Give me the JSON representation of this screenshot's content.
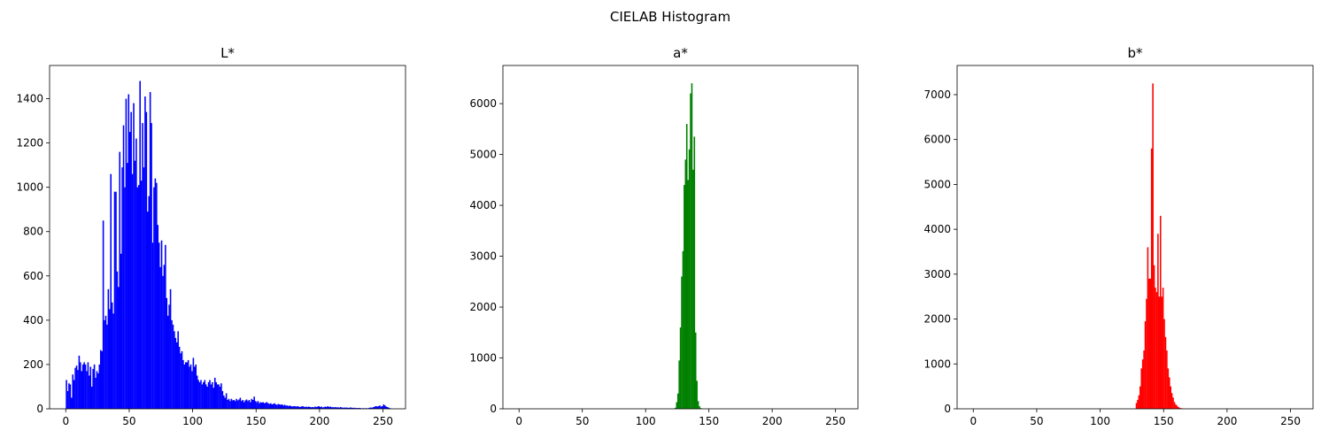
{
  "figure": {
    "suptitle": "CIELAB Histogram"
  },
  "chart_data": [
    {
      "type": "bar",
      "title": "L*",
      "color": "#0000ff",
      "xlim": [
        -12.75,
        267.75
      ],
      "ylim": [
        0,
        1550
      ],
      "xticks": [
        0,
        50,
        100,
        150,
        200,
        250
      ],
      "yticks": [
        0,
        200,
        400,
        600,
        800,
        1000,
        1200,
        1400
      ],
      "bins": [
        [
          0,
          130
        ],
        [
          1,
          80
        ],
        [
          2,
          115
        ],
        [
          3,
          110
        ],
        [
          4,
          50
        ],
        [
          5,
          155
        ],
        [
          6,
          130
        ],
        [
          7,
          185
        ],
        [
          8,
          195
        ],
        [
          9,
          175
        ],
        [
          10,
          240
        ],
        [
          11,
          210
        ],
        [
          12,
          170
        ],
        [
          13,
          200
        ],
        [
          14,
          210
        ],
        [
          15,
          200
        ],
        [
          16,
          170
        ],
        [
          17,
          210
        ],
        [
          18,
          150
        ],
        [
          19,
          190
        ],
        [
          20,
          100
        ],
        [
          21,
          180
        ],
        [
          22,
          200
        ],
        [
          23,
          140
        ],
        [
          24,
          170
        ],
        [
          25,
          160
        ],
        [
          26,
          200
        ],
        [
          27,
          265
        ],
        [
          28,
          260
        ],
        [
          29,
          850
        ],
        [
          30,
          400
        ],
        [
          31,
          420
        ],
        [
          32,
          380
        ],
        [
          33,
          540
        ],
        [
          34,
          450
        ],
        [
          35,
          1060
        ],
        [
          36,
          480
        ],
        [
          37,
          430
        ],
        [
          38,
          980
        ],
        [
          39,
          980
        ],
        [
          40,
          620
        ],
        [
          41,
          550
        ],
        [
          42,
          1160
        ],
        [
          43,
          700
        ],
        [
          44,
          1090
        ],
        [
          45,
          1280
        ],
        [
          46,
          1000
        ],
        [
          47,
          1400
        ],
        [
          48,
          1110
        ],
        [
          49,
          1420
        ],
        [
          50,
          1250
        ],
        [
          51,
          1340
        ],
        [
          52,
          1060
        ],
        [
          53,
          1380
        ],
        [
          54,
          1120
        ],
        [
          55,
          1220
        ],
        [
          56,
          1000
        ],
        [
          57,
          1010
        ],
        [
          58,
          1480
        ],
        [
          59,
          1030
        ],
        [
          60,
          1290
        ],
        [
          61,
          1090
        ],
        [
          62,
          1410
        ],
        [
          63,
          1340
        ],
        [
          64,
          890
        ],
        [
          65,
          960
        ],
        [
          66,
          1430
        ],
        [
          67,
          1290
        ],
        [
          68,
          750
        ],
        [
          69,
          1000
        ],
        [
          70,
          1040
        ],
        [
          71,
          1020
        ],
        [
          72,
          830
        ],
        [
          73,
          750
        ],
        [
          74,
          640
        ],
        [
          75,
          760
        ],
        [
          76,
          600
        ],
        [
          77,
          650
        ],
        [
          78,
          740
        ],
        [
          79,
          500
        ],
        [
          80,
          420
        ],
        [
          81,
          470
        ],
        [
          82,
          540
        ],
        [
          83,
          400
        ],
        [
          84,
          380
        ],
        [
          85,
          350
        ],
        [
          86,
          320
        ],
        [
          87,
          300
        ],
        [
          88,
          350
        ],
        [
          89,
          280
        ],
        [
          90,
          250
        ],
        [
          91,
          260
        ],
        [
          92,
          220
        ],
        [
          93,
          200
        ],
        [
          94,
          210
        ],
        [
          95,
          210
        ],
        [
          96,
          220
        ],
        [
          97,
          190
        ],
        [
          98,
          200
        ],
        [
          99,
          170
        ],
        [
          100,
          230
        ],
        [
          101,
          190
        ],
        [
          102,
          200
        ],
        [
          103,
          150
        ],
        [
          104,
          130
        ],
        [
          105,
          120
        ],
        [
          106,
          130
        ],
        [
          107,
          110
        ],
        [
          108,
          120
        ],
        [
          109,
          130
        ],
        [
          110,
          110
        ],
        [
          111,
          100
        ],
        [
          112,
          120
        ],
        [
          113,
          130
        ],
        [
          114,
          110
        ],
        [
          115,
          120
        ],
        [
          116,
          95
        ],
        [
          117,
          140
        ],
        [
          118,
          120
        ],
        [
          119,
          110
        ],
        [
          120,
          110
        ],
        [
          121,
          100
        ],
        [
          122,
          115
        ],
        [
          123,
          80
        ],
        [
          124,
          60
        ],
        [
          125,
          50
        ],
        [
          126,
          70
        ],
        [
          127,
          40
        ],
        [
          128,
          45
        ],
        [
          129,
          35
        ],
        [
          130,
          45
        ],
        [
          131,
          38
        ],
        [
          132,
          40
        ],
        [
          133,
          35
        ],
        [
          134,
          45
        ],
        [
          135,
          38
        ],
        [
          136,
          42
        ],
        [
          137,
          50
        ],
        [
          138,
          35
        ],
        [
          139,
          40
        ],
        [
          140,
          30
        ],
        [
          141,
          38
        ],
        [
          142,
          42
        ],
        [
          143,
          35
        ],
        [
          144,
          40
        ],
        [
          145,
          30
        ],
        [
          146,
          45
        ],
        [
          147,
          40
        ],
        [
          148,
          55
        ],
        [
          149,
          35
        ],
        [
          150,
          30
        ],
        [
          151,
          35
        ],
        [
          152,
          25
        ],
        [
          153,
          30
        ],
        [
          154,
          28
        ],
        [
          155,
          30
        ],
        [
          156,
          25
        ],
        [
          157,
          28
        ],
        [
          158,
          30
        ],
        [
          159,
          25
        ],
        [
          160,
          22
        ],
        [
          161,
          25
        ],
        [
          162,
          20
        ],
        [
          163,
          22
        ],
        [
          164,
          25
        ],
        [
          165,
          20
        ],
        [
          166,
          18
        ],
        [
          167,
          22
        ],
        [
          168,
          20
        ],
        [
          169,
          18
        ],
        [
          170,
          20
        ],
        [
          171,
          15
        ],
        [
          172,
          18
        ],
        [
          173,
          15
        ],
        [
          174,
          15
        ],
        [
          175,
          12
        ],
        [
          176,
          15
        ],
        [
          177,
          12
        ],
        [
          178,
          10
        ],
        [
          179,
          12
        ],
        [
          180,
          12
        ],
        [
          181,
          10
        ],
        [
          182,
          12
        ],
        [
          183,
          10
        ],
        [
          184,
          8
        ],
        [
          185,
          10
        ],
        [
          186,
          12
        ],
        [
          187,
          10
        ],
        [
          188,
          8
        ],
        [
          189,
          10
        ],
        [
          190,
          8
        ],
        [
          191,
          10
        ],
        [
          192,
          8
        ],
        [
          193,
          7
        ],
        [
          194,
          8
        ],
        [
          195,
          7
        ],
        [
          196,
          10
        ],
        [
          197,
          8
        ],
        [
          198,
          10
        ],
        [
          199,
          12
        ],
        [
          200,
          8
        ],
        [
          201,
          10
        ],
        [
          202,
          6
        ],
        [
          203,
          8
        ],
        [
          204,
          10
        ],
        [
          205,
          8
        ],
        [
          206,
          12
        ],
        [
          207,
          8
        ],
        [
          208,
          10
        ],
        [
          209,
          7
        ],
        [
          210,
          8
        ],
        [
          211,
          6
        ],
        [
          212,
          8
        ],
        [
          213,
          6
        ],
        [
          214,
          7
        ],
        [
          215,
          5
        ],
        [
          216,
          8
        ],
        [
          217,
          6
        ],
        [
          218,
          5
        ],
        [
          219,
          6
        ],
        [
          220,
          5
        ],
        [
          221,
          6
        ],
        [
          222,
          4
        ],
        [
          223,
          5
        ],
        [
          224,
          6
        ],
        [
          225,
          5
        ],
        [
          226,
          4
        ],
        [
          227,
          5
        ],
        [
          228,
          3
        ],
        [
          229,
          4
        ],
        [
          230,
          3
        ],
        [
          231,
          4
        ],
        [
          232,
          3
        ],
        [
          233,
          2
        ],
        [
          234,
          3
        ],
        [
          235,
          2
        ],
        [
          236,
          3
        ],
        [
          237,
          2
        ],
        [
          238,
          3
        ],
        [
          239,
          5
        ],
        [
          240,
          6
        ],
        [
          241,
          5
        ],
        [
          242,
          8
        ],
        [
          243,
          10
        ],
        [
          244,
          12
        ],
        [
          245,
          10
        ],
        [
          246,
          12
        ],
        [
          247,
          15
        ],
        [
          248,
          10
        ],
        [
          249,
          12
        ],
        [
          250,
          20
        ],
        [
          251,
          15
        ],
        [
          252,
          10
        ],
        [
          253,
          8
        ],
        [
          254,
          5
        ],
        [
          255,
          3
        ]
      ]
    },
    {
      "type": "bar",
      "title": "a*",
      "color": "#008000",
      "xlim": [
        -12.75,
        267.75
      ],
      "ylim": [
        0,
        6750
      ],
      "xticks": [
        0,
        50,
        100,
        150,
        200,
        250
      ],
      "yticks": [
        0,
        1000,
        2000,
        3000,
        4000,
        5000,
        6000
      ],
      "bins": [
        [
          123,
          20
        ],
        [
          124,
          130
        ],
        [
          125,
          300
        ],
        [
          126,
          950
        ],
        [
          127,
          1600
        ],
        [
          128,
          2600
        ],
        [
          129,
          3100
        ],
        [
          130,
          4400
        ],
        [
          131,
          4900
        ],
        [
          132,
          5600
        ],
        [
          133,
          4500
        ],
        [
          134,
          5100
        ],
        [
          135,
          6200
        ],
        [
          136,
          6400
        ],
        [
          137,
          4700
        ],
        [
          138,
          5350
        ],
        [
          139,
          1500
        ],
        [
          140,
          550
        ],
        [
          141,
          150
        ],
        [
          142,
          50
        ],
        [
          143,
          15
        ]
      ]
    },
    {
      "type": "bar",
      "title": "b*",
      "color": "#ff0000",
      "xlim": [
        -12.75,
        267.75
      ],
      "ylim": [
        0,
        7650
      ],
      "xticks": [
        0,
        50,
        100,
        150,
        200,
        250
      ],
      "yticks": [
        0,
        1000,
        2000,
        3000,
        4000,
        5000,
        6000,
        7000
      ],
      "bins": [
        [
          128,
          130
        ],
        [
          129,
          200
        ],
        [
          130,
          300
        ],
        [
          131,
          500
        ],
        [
          132,
          900
        ],
        [
          133,
          1100
        ],
        [
          134,
          1300
        ],
        [
          135,
          1950
        ],
        [
          136,
          2450
        ],
        [
          137,
          3600
        ],
        [
          138,
          2900
        ],
        [
          139,
          2900
        ],
        [
          140,
          5800
        ],
        [
          141,
          7250
        ],
        [
          142,
          3200
        ],
        [
          143,
          2700
        ],
        [
          144,
          2600
        ],
        [
          145,
          3900
        ],
        [
          146,
          2500
        ],
        [
          147,
          4300
        ],
        [
          148,
          2500
        ],
        [
          149,
          2700
        ],
        [
          150,
          2000
        ],
        [
          151,
          1600
        ],
        [
          152,
          1300
        ],
        [
          153,
          900
        ],
        [
          154,
          700
        ],
        [
          155,
          500
        ],
        [
          156,
          350
        ],
        [
          157,
          250
        ],
        [
          158,
          150
        ],
        [
          159,
          100
        ],
        [
          160,
          70
        ],
        [
          161,
          40
        ],
        [
          162,
          25
        ],
        [
          163,
          15
        ],
        [
          164,
          10
        ],
        [
          165,
          5
        ]
      ]
    }
  ]
}
